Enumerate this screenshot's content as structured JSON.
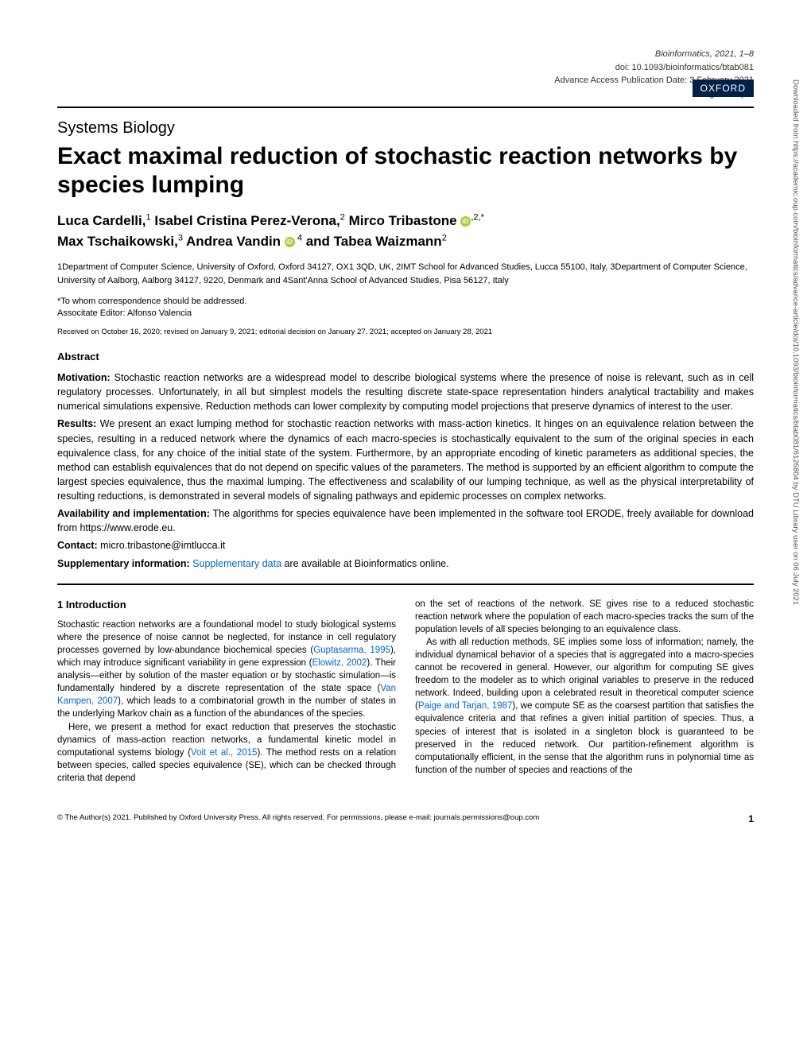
{
  "journal_meta": {
    "line1": "Bioinformatics, 2021, 1–8",
    "line2": "doi: 10.1093/bioinformatics/btab081",
    "line3": "Advance Access Publication Date: 3 February 2021",
    "line4": "Original Paper"
  },
  "publisher_badge": "OXFORD",
  "section_label": "Systems Biology",
  "title": "Exact maximal reduction of stochastic reaction networks by species lumping",
  "authors_html_parts": {
    "a1_name": "Luca Cardelli,",
    "a1_sup": "1",
    "a2_name": " Isabel Cristina Perez-Verona,",
    "a2_sup": "2",
    "a3_name": " Mirco Tribastone ",
    "a3_sup": ",2,*",
    "a4_name": "Max Tschaikowski,",
    "a4_sup": "3",
    "a5_name": " Andrea Vandin ",
    "a5_sup": " 4",
    "a6_name": " and Tabea Waizmann",
    "a6_sup": "2"
  },
  "affiliations": "1Department of Computer Science, University of Oxford, Oxford 34127, OX1 3QD, UK, 2IMT School for Advanced Studies, Lucca 55100, Italy, 3Department of Computer Science, University of Aalborg, Aalborg 34127, 9220, Denmark and 4Sant'Anna School of Advanced Studies, Pisa 56127, Italy",
  "correspondence": "*To whom correspondence should be addressed.",
  "editor": "Associtate Editor: Alfonso Valencia",
  "dates": "Received on October 16, 2020; revised on January 9, 2021; editorial decision on January 27, 2021; accepted on January 28, 2021",
  "abstract": {
    "heading": "Abstract",
    "motivation_label": "Motivation:",
    "motivation_text": " Stochastic reaction networks are a widespread model to describe biological systems where the presence of noise is relevant, such as in cell regulatory processes. Unfortunately, in all but simplest models the resulting discrete state-space representation hinders analytical tractability and makes numerical simulations expensive. Reduction methods can lower complexity by computing model projections that preserve dynamics of interest to the user.",
    "results_label": "Results:",
    "results_text": " We present an exact lumping method for stochastic reaction networks with mass-action kinetics. It hinges on an equivalence relation between the species, resulting in a reduced network where the dynamics of each macro-species is stochastically equivalent to the sum of the original species in each equivalence class, for any choice of the initial state of the system. Furthermore, by an appropriate encoding of kinetic parameters as additional species, the method can establish equivalences that do not depend on specific values of the parameters. The method is supported by an efficient algorithm to compute the largest species equivalence, thus the maximal lumping. The effectiveness and scalability of our lumping technique, as well as the physical interpretability of resulting reductions, is demonstrated in several models of signaling pathways and epidemic processes on complex networks.",
    "availability_label": "Availability and implementation:",
    "availability_text": " The algorithms for species equivalence have been implemented in the software tool ERODE, freely available for download from https://www.erode.eu.",
    "contact_label": "Contact:",
    "contact_text": " micro.tribastone@imtlucca.it",
    "supp_label": "Supplementary information:",
    "supp_link": "Supplementary data",
    "supp_text": " are available at Bioinformatics online."
  },
  "body": {
    "intro_heading": "1 Introduction",
    "col1_p1": "Stochastic reaction networks are a foundational model to study biological systems where the presence of noise cannot be neglected, for instance in cell regulatory processes governed by low-abundance biochemical species (",
    "col1_ref1": "Guptasarma, 1995",
    "col1_p1b": "), which may introduce significant variability in gene expression (",
    "col1_ref2": "Elowitz, 2002",
    "col1_p1c": "). Their analysis—either by solution of the master equation or by stochastic simulation—is fundamentally hindered by a discrete representation of the state space (",
    "col1_ref3": "Van Kampen, 2007",
    "col1_p1d": "), which leads to a combinatorial growth in the number of states in the underlying Markov chain as a function of the abundances of the species.",
    "col1_p2a": "Here, we present a method for exact reduction that preserves the stochastic dynamics of mass-action reaction networks, a fundamental kinetic model in computational systems biology (",
    "col1_ref4": "Voit et al., 2015",
    "col1_p2b": "). The method rests on a relation between species, called species equivalence (SE), which can be checked through criteria that depend",
    "col2_p1": "on the set of reactions of the network. SE gives rise to a reduced stochastic reaction network where the population of each macro-species tracks the sum of the population levels of all species belonging to an equivalence class.",
    "col2_p2a": "As with all reduction methods, SE implies some loss of information; namely, the individual dynamical behavior of a species that is aggregated into a macro-species cannot be recovered in general. However, our algorithm for computing SE gives freedom to the modeler as to which original variables to preserve in the reduced network. Indeed, building upon a celebrated result in theoretical computer science (",
    "col2_ref1": "Paige and Tarjan, 1987",
    "col2_p2b": "), we compute SE as the coarsest partition that satisfies the equivalence criteria and that refines a given initial partition of species. Thus, a species of interest that is isolated in a singleton block is guaranteed to be preserved in the reduced network. Our partition-refinement algorithm is computationally efficient, in the sense that the algorithm runs in polynomial time as function of the number of species and reactions of the"
  },
  "footer": {
    "copyright": "© The Author(s) 2021. Published by Oxford University Press. All rights reserved. For permissions, please e-mail: journals.permissions@oup.com",
    "page_num": "1"
  },
  "sidebar": "Downloaded from https://academic.oup.com/bioinformatics/advance-article/doi/10.1093/bioinformatics/btab081/6126804 by DTU Library user on 06 July 2021",
  "colors": {
    "oxford_bg": "#002147",
    "link": "#0066cc",
    "orcid": "#a6ce39"
  }
}
